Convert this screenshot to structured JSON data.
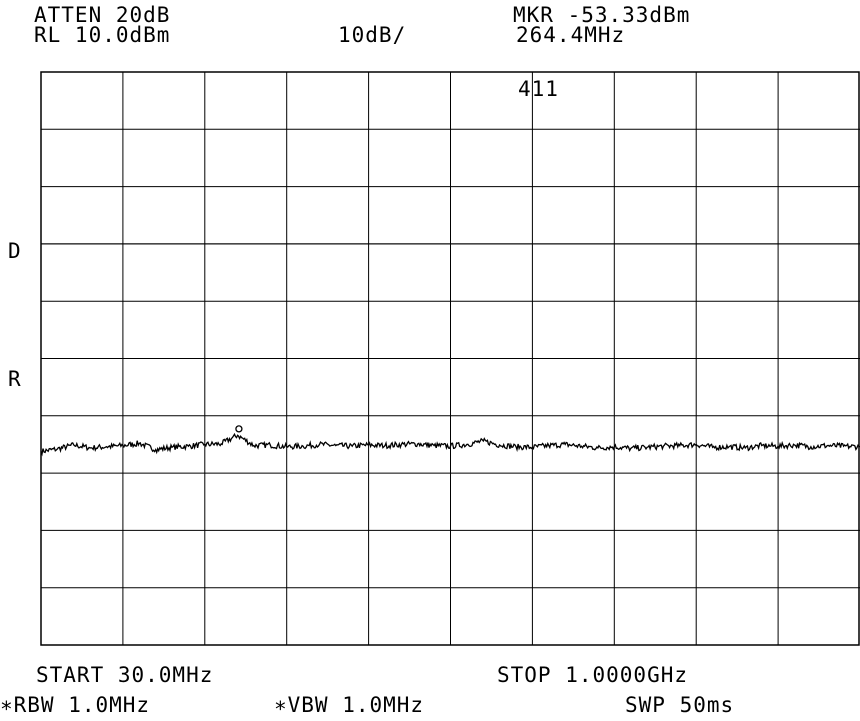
{
  "header": {
    "attenuation": "ATTEN 20dB",
    "reference_level": "RL 10.0dBm",
    "scale": "10dB/",
    "marker_level": "MKR -53.33dBm",
    "marker_frequency": "264.4MHz",
    "marker_number": "411"
  },
  "side_labels": {
    "display_line": "D",
    "reference": "R"
  },
  "footer": {
    "start": "START 30.0MHz",
    "stop": "STOP 1.0000GHz",
    "rbw": "∗RBW 1.0MHz",
    "vbw": "∗VBW 1.0MHz",
    "sweep": "SWP 50ms"
  },
  "colors": {
    "trace": "#000000",
    "grid": "#000000",
    "background": "#ffffff"
  },
  "chart_data": {
    "type": "line",
    "x_unit": "MHz",
    "y_unit": "dBm",
    "xlim": [
      30,
      1000
    ],
    "ylim": [
      -90,
      10
    ],
    "reference_level_dbm": 10,
    "scale_db_per_div": 10,
    "grid": true,
    "display_line_dbm": -20,
    "marker": {
      "x": 264.4,
      "y": -53.33
    },
    "series": [
      {
        "x": [
          30,
          49.4,
          68.8,
          88.2,
          107.6,
          127,
          146.4,
          165.8,
          185.2,
          204.6,
          224,
          243.4,
          262.8,
          282.2,
          301.6,
          321,
          340.4,
          359.8,
          379.2,
          398.6,
          418,
          437.4,
          456.8,
          476.2,
          495.6,
          515,
          534.4,
          553.8,
          573.2,
          592.6,
          612,
          631.4,
          650.8,
          670.2,
          689.6,
          709,
          728.4,
          747.8,
          767.2,
          786.6,
          806,
          825.4,
          844.8,
          864.2,
          883.6,
          903,
          922.4,
          941.8,
          961.2,
          980.6,
          1000
        ],
        "y": [
          -56.2,
          -55.8,
          -55.1,
          -55.6,
          -55.4,
          -55.2,
          -54.8,
          -55.9,
          -55.5,
          -55.3,
          -55.0,
          -54.9,
          -53.4,
          -55.2,
          -55.1,
          -55.4,
          -55.3,
          -55.0,
          -55.2,
          -55.3,
          -55.1,
          -55.2,
          -55.0,
          -54.9,
          -55.2,
          -55.3,
          -55.0,
          -54.4,
          -55.1,
          -55.4,
          -55.5,
          -55.2,
          -55.0,
          -55.3,
          -55.6,
          -55.4,
          -55.7,
          -55.5,
          -55.3,
          -55.2,
          -55.0,
          -55.5,
          -55.4,
          -55.6,
          -55.2,
          -55.3,
          -55.1,
          -55.4,
          -55.2,
          -55.3,
          -55.4
        ]
      }
    ]
  }
}
